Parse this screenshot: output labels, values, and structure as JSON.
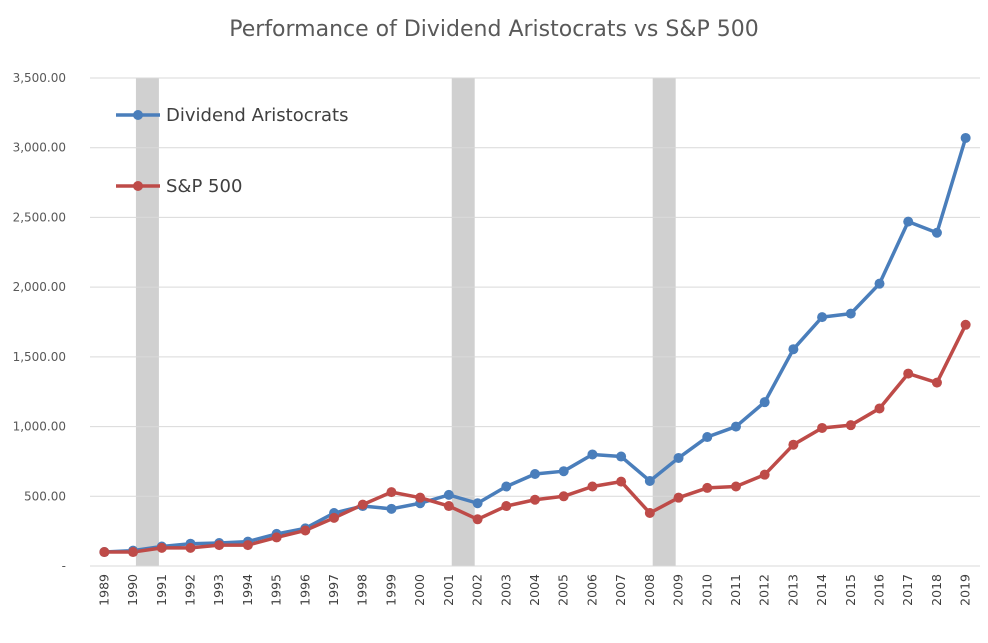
{
  "chart_data": {
    "type": "line",
    "title": "Performance of Dividend Aristocrats vs S&P 500",
    "xlabel": "",
    "ylabel": "",
    "ylim": [
      0,
      3500
    ],
    "yticks": [
      {
        "value": 0,
        "label": "-"
      },
      {
        "value": 500,
        "label": "500.00"
      },
      {
        "value": 1000,
        "label": "1,000.00"
      },
      {
        "value": 1500,
        "label": "1,500.00"
      },
      {
        "value": 2000,
        "label": "2,000.00"
      },
      {
        "value": 2500,
        "label": "2,500.00"
      },
      {
        "value": 3000,
        "label": "3,000.00"
      },
      {
        "value": 3500,
        "label": "3,500.00"
      }
    ],
    "categories": [
      "1989",
      "1990",
      "1991",
      "1992",
      "1993",
      "1994",
      "1995",
      "1996",
      "1997",
      "1998",
      "1999",
      "2000",
      "2001",
      "2002",
      "2003",
      "2004",
      "2005",
      "2006",
      "2007",
      "2008",
      "2009",
      "2010",
      "2011",
      "2012",
      "2013",
      "2014",
      "2015",
      "2016",
      "2017",
      "2018",
      "2019"
    ],
    "series": [
      {
        "name": "Dividend Aristocrats",
        "color": "#4a7ebb",
        "values": [
          100,
          110,
          140,
          160,
          165,
          175,
          230,
          270,
          380,
          430,
          410,
          450,
          510,
          450,
          570,
          660,
          680,
          800,
          785,
          610,
          775,
          925,
          1000,
          1175,
          1555,
          1785,
          1810,
          2025,
          2470,
          2390,
          3070
        ]
      },
      {
        "name": "S&P 500",
        "color": "#be4b48",
        "values": [
          100,
          100,
          130,
          130,
          150,
          150,
          205,
          255,
          345,
          440,
          530,
          490,
          430,
          335,
          430,
          475,
          500,
          570,
          605,
          380,
          490,
          560,
          570,
          655,
          870,
          990,
          1010,
          1130,
          1380,
          1315,
          1730
        ]
      }
    ],
    "shaded_ranges": [
      {
        "from": "1990",
        "to": "1991"
      },
      {
        "from": "2001",
        "to": "2002"
      },
      {
        "from": "2008",
        "to": "2009"
      }
    ],
    "shade_color": "#d0d0d0",
    "legend": {
      "position": "top-left"
    },
    "grid": true
  }
}
